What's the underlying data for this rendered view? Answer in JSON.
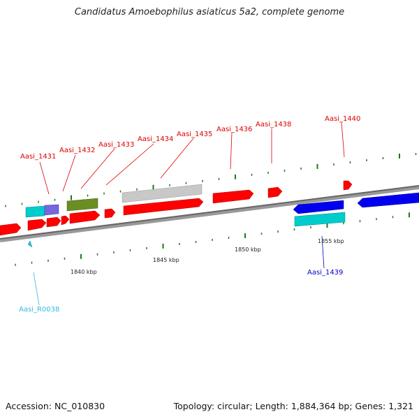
{
  "title": "Candidatus Amoebophilus asiaticus 5a2, complete genome",
  "footer": {
    "accession": "Accession: NC_010830",
    "summary": "Topology: circular; Length: 1,884,364 bp; Genes: 1,321"
  },
  "colors": {
    "red_gene": "#ff0000",
    "blue_gene": "#0000ee",
    "cyan_gene": "#00cccc",
    "purple_gene": "#7766dd",
    "olive_gene": "#6b8e23",
    "gray_gene": "#c0c0c0",
    "backbone": "#777777",
    "tick": "#1a7a1a",
    "red_label": "#dd0000",
    "blue_label": "#0000cc",
    "cyan_label": "#33bbdd"
  },
  "scale_labels": [
    "1840 kbp",
    "1845 kbp",
    "1850 kbp",
    "1855 kbp"
  ],
  "gene_labels": [
    {
      "text": "Aasi_1431",
      "color": "red"
    },
    {
      "text": "Aasi_1432",
      "color": "red"
    },
    {
      "text": "Aasi_1433",
      "color": "red"
    },
    {
      "text": "Aasi_1434",
      "color": "red"
    },
    {
      "text": "Aasi_1435",
      "color": "red"
    },
    {
      "text": "Aasi_1436",
      "color": "red"
    },
    {
      "text": "Aasi_1438",
      "color": "red"
    },
    {
      "text": "Aasi_1440",
      "color": "red"
    },
    {
      "text": "Aasi_1439",
      "color": "blue"
    },
    {
      "text": "Aasi_R0038",
      "color": "cyan"
    }
  ]
}
